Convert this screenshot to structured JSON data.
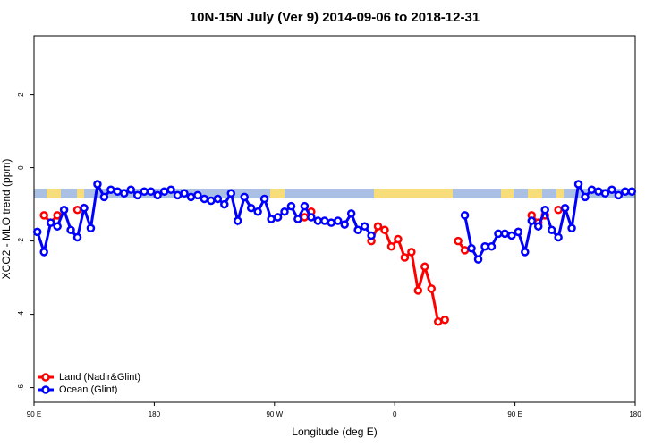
{
  "chart_data": {
    "type": "line",
    "title": "10N-15N July (Ver 9)   2014-09-06 to 2018-12-31",
    "x_label": "Longitude (deg E)",
    "y_label": "XCO2 - MLO trend (ppm)",
    "x": [
      92.5,
      97.5,
      102.5,
      107.5,
      112.5,
      117.5,
      122.5,
      127.5,
      132.5,
      137.5,
      142.5,
      147.5,
      152.5,
      157.5,
      162.5,
      167.5,
      172.5,
      177.5,
      182.5,
      187.5,
      192.5,
      197.5,
      202.5,
      207.5,
      212.5,
      217.5,
      222.5,
      227.5,
      232.5,
      237.5,
      242.5,
      247.5,
      252.5,
      257.5,
      262.5,
      267.5,
      272.5,
      277.5,
      282.5,
      287.5,
      292.5,
      297.5,
      302.5,
      307.5,
      312.5,
      317.5,
      322.5,
      327.5,
      332.5,
      337.5,
      342.5,
      347.5,
      352.5,
      357.5,
      362.5,
      367.5,
      372.5,
      377.5,
      382.5,
      387.5,
      392.5,
      397.5,
      402.5,
      407.5,
      412.5,
      417.5,
      422.5,
      427.5,
      432.5,
      437.5,
      442.5,
      447.5,
      452.5,
      457.5,
      462.5,
      467.5,
      472.5,
      477.5,
      482.5,
      487.5,
      492.5,
      497.5,
      502.5,
      507.5,
      512.5,
      517.5,
      522.5,
      527.5,
      532.5,
      537.5
    ],
    "series": [
      {
        "name": "Land (Nadir&Glint)",
        "color": "#ff0000",
        "values": [
          null,
          -1.3,
          -1.5,
          -1.3,
          null,
          null,
          -1.15,
          -1.1,
          null,
          null,
          null,
          null,
          null,
          null,
          null,
          null,
          null,
          null,
          null,
          null,
          null,
          null,
          null,
          null,
          null,
          null,
          null,
          null,
          null,
          null,
          null,
          null,
          null,
          null,
          null,
          null,
          -1.35,
          null,
          null,
          -1.4,
          -1.35,
          -1.2,
          null,
          null,
          null,
          null,
          null,
          null,
          null,
          null,
          -2.0,
          -1.6,
          -1.7,
          -2.15,
          -1.95,
          -2.45,
          -2.3,
          -3.35,
          -2.7,
          -3.3,
          -4.2,
          -4.15,
          null,
          -2.0,
          -2.25,
          null,
          null,
          null,
          null,
          null,
          null,
          null,
          -1.75,
          null,
          -1.3,
          -1.5,
          -1.3,
          null,
          -1.15,
          null,
          null,
          null,
          null,
          null,
          null,
          null,
          null,
          null,
          null,
          null
        ]
      },
      {
        "name": "Ocean (Glint)",
        "color": "#0000ff",
        "values": [
          -1.75,
          -2.3,
          -1.5,
          -1.6,
          -1.15,
          -1.7,
          -1.9,
          -1.1,
          -1.65,
          -0.45,
          -0.8,
          -0.6,
          -0.65,
          -0.7,
          -0.6,
          -0.75,
          -0.65,
          -0.65,
          -0.75,
          -0.65,
          -0.6,
          -0.75,
          -0.7,
          -0.8,
          -0.75,
          -0.85,
          -0.9,
          -0.85,
          -1.0,
          -0.7,
          -1.45,
          -0.8,
          -1.1,
          -1.2,
          -0.85,
          -1.4,
          -1.35,
          -1.2,
          -1.05,
          -1.4,
          -1.05,
          -1.35,
          -1.45,
          -1.45,
          -1.5,
          -1.45,
          -1.55,
          -1.25,
          -1.7,
          -1.6,
          -1.85,
          null,
          null,
          null,
          null,
          null,
          null,
          null,
          null,
          null,
          null,
          null,
          null,
          null,
          -1.3,
          -2.2,
          -2.5,
          -2.15,
          -2.15,
          -1.8,
          -1.8,
          -1.85,
          -1.75,
          -2.3,
          -1.45,
          -1.6,
          -1.15,
          -1.7,
          -1.9,
          -1.1,
          -1.65,
          -0.45,
          -0.8,
          -0.6,
          -0.65,
          -0.7,
          -0.6,
          -0.75,
          -0.65,
          -0.65
        ]
      }
    ],
    "xlim": [
      90,
      540
    ],
    "xticks": [
      {
        "value": 90,
        "label": "90 E"
      },
      {
        "value": 180,
        "label": "180"
      },
      {
        "value": 270,
        "label": "90 W"
      },
      {
        "value": 360,
        "label": "0"
      },
      {
        "value": 450,
        "label": "90 E"
      },
      {
        "value": 540,
        "label": "180"
      }
    ],
    "ylim": [
      -6.4,
      3.6
    ],
    "yticks": [
      2,
      0,
      -2,
      -4,
      -6
    ],
    "legend": "bottom-left"
  }
}
